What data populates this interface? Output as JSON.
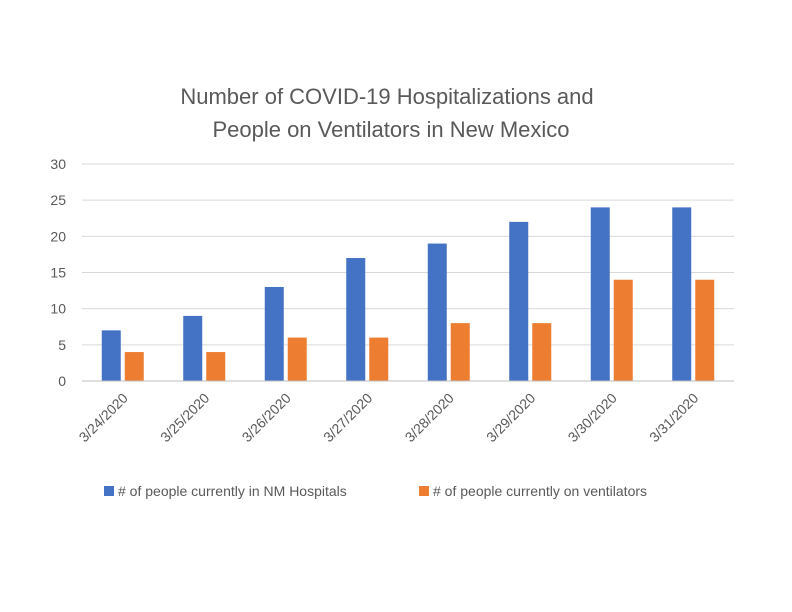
{
  "chart_data": {
    "type": "bar",
    "title": [
      "Number of COVID-19 Hospitalizations and",
      "People on Ventilators in New Mexico"
    ],
    "categories": [
      "3/24/2020",
      "3/25/2020",
      "3/26/2020",
      "3/27/2020",
      "3/28/2020",
      "3/29/2020",
      "3/30/2020",
      "3/31/2020"
    ],
    "series": [
      {
        "name": "# of people currently in NM Hospitals",
        "values": [
          7,
          9,
          13,
          17,
          19,
          22,
          24,
          24
        ],
        "color": "#4472c4"
      },
      {
        "name": "# of people currently on ventilators",
        "values": [
          4,
          4,
          6,
          6,
          8,
          8,
          14,
          14
        ],
        "color": "#ed7d31"
      }
    ],
    "ylim": [
      0,
      30
    ],
    "yticks": [
      "0",
      "5",
      "10",
      "15",
      "20",
      "25",
      "30"
    ],
    "grid": true,
    "legend_position": "bottom"
  }
}
